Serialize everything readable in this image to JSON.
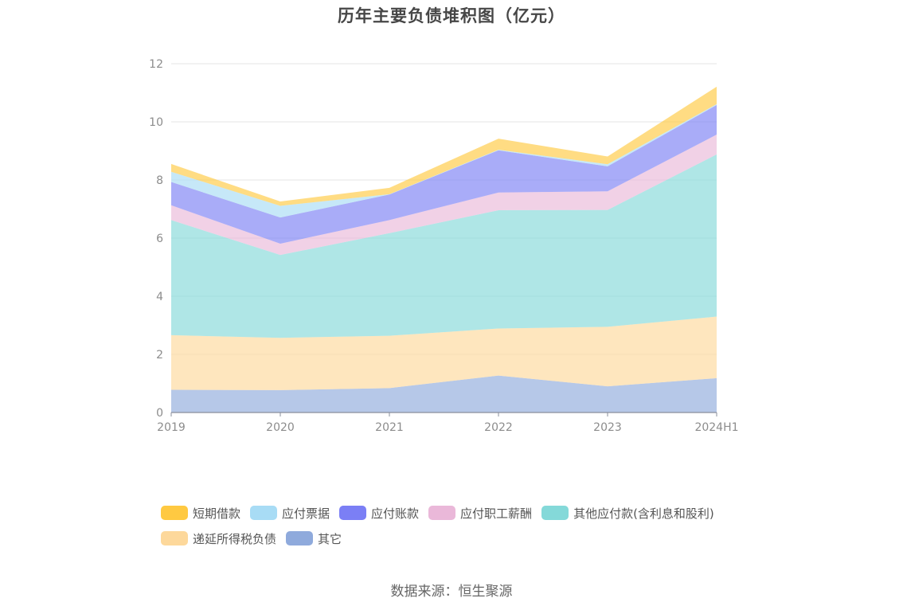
{
  "title": "历年主要负债堆积图（亿元）",
  "source": "数据来源：恒生聚源",
  "chart_data": {
    "type": "area",
    "stacked": true,
    "title": "历年主要负债堆积图（亿元）",
    "categories": [
      "2019",
      "2020",
      "2021",
      "2022",
      "2023",
      "2024H1"
    ],
    "ylim": [
      0,
      12
    ],
    "yticks": [
      "0",
      "2",
      "4",
      "6",
      "8",
      "10",
      "12"
    ],
    "grid": true,
    "legend_position": "bottom",
    "series": [
      {
        "name": "其它",
        "color": "#8faadc",
        "values": [
          0.78,
          0.77,
          0.84,
          1.27,
          0.9,
          1.18
        ]
      },
      {
        "name": "递延所得税负债",
        "color": "#fdd89b",
        "values": [
          1.88,
          1.8,
          1.8,
          1.62,
          2.05,
          2.12
        ]
      },
      {
        "name": "其他应付款(含利息和股利)",
        "color": "#84d9d9",
        "values": [
          3.96,
          2.85,
          3.53,
          4.07,
          4.02,
          5.58
        ]
      },
      {
        "name": "应付职工薪酬",
        "color": "#eab8d9",
        "values": [
          0.51,
          0.39,
          0.45,
          0.61,
          0.64,
          0.68
        ]
      },
      {
        "name": "应付账款",
        "color": "#7b7ff5",
        "values": [
          0.8,
          0.9,
          0.88,
          1.45,
          0.86,
          1.02
        ]
      },
      {
        "name": "应付票据",
        "color": "#a8dcf5",
        "values": [
          0.35,
          0.4,
          0.01,
          0.02,
          0.07,
          0.03
        ]
      },
      {
        "name": "短期借款",
        "color": "#ffc941",
        "values": [
          0.27,
          0.15,
          0.22,
          0.38,
          0.27,
          0.6
        ]
      }
    ]
  },
  "legend": {
    "row1": [
      {
        "name": "短期借款",
        "color": "#ffc941"
      },
      {
        "name": "应付票据",
        "color": "#a8dcf5"
      },
      {
        "name": "应付账款",
        "color": "#7b7ff5"
      },
      {
        "name": "应付职工薪酬",
        "color": "#eab8d9"
      },
      {
        "name": "其他应付款(含利息和股利)",
        "color": "#84d9d9"
      }
    ],
    "row2": [
      {
        "name": "递延所得税负债",
        "color": "#fdd89b"
      },
      {
        "name": "其它",
        "color": "#8faadc"
      }
    ]
  }
}
